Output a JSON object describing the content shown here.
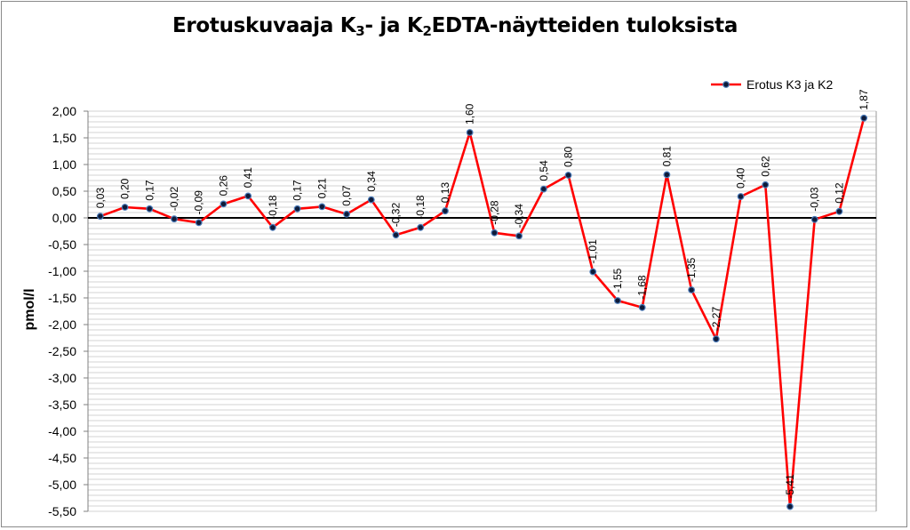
{
  "chart_data": {
    "type": "line",
    "title": {
      "main": "Erotuskuvaaja K",
      "sub1": "3",
      "mid": "- ja K",
      "sub2": "2",
      "tail": "EDTA-näytteiden tuloksista"
    },
    "xlabel": "",
    "ylabel": "pmol/l",
    "ylim": [
      -5.5,
      2.0
    ],
    "yticks": [
      2.0,
      1.5,
      1.0,
      0.5,
      0.0,
      -0.5,
      -1.0,
      -1.5,
      -2.0,
      -2.5,
      -3.0,
      -3.5,
      -4.0,
      -4.5,
      -5.0,
      -5.5
    ],
    "ytick_labels": [
      "2,00",
      "1,50",
      "1,00",
      "0,50",
      "0,00",
      "-0,50",
      "-1,00",
      "-1,50",
      "-2,00",
      "-2,50",
      "-3,00",
      "-3,50",
      "-4,00",
      "-4,50",
      "-5,00",
      "-5,50"
    ],
    "minor_grid_step": 0.1,
    "grid": true,
    "legend_position": "top-right",
    "series": [
      {
        "name": "Erotus K3 ja K2",
        "color": "#ff0000",
        "marker_color": "#0d1b3a",
        "values": [
          0.03,
          0.2,
          0.17,
          -0.02,
          -0.09,
          0.26,
          0.41,
          -0.18,
          0.17,
          0.21,
          0.07,
          0.34,
          -0.32,
          -0.18,
          0.13,
          1.6,
          -0.28,
          -0.34,
          0.54,
          0.8,
          -1.01,
          -1.55,
          -1.68,
          0.81,
          -1.35,
          -2.27,
          0.4,
          0.62,
          -5.41,
          -0.03,
          0.12,
          1.87
        ],
        "labels": [
          "0,03",
          "0,20",
          "0,17",
          "-0,02",
          "-0,09",
          "0,26",
          "0,41",
          "-0,18",
          "0,17",
          "0,21",
          "0,07",
          "0,34",
          "-0,32",
          "-0,18",
          "0,13",
          "1,60",
          "-0,28",
          "-0,34",
          "0,54",
          "0,80",
          "-1,01",
          "-1,55",
          "-1,68",
          "0,81",
          "-1,35",
          "-2,27",
          "0,40",
          "0,62",
          "-5,41",
          "-0,03",
          "0,12",
          "1,87"
        ]
      }
    ]
  }
}
